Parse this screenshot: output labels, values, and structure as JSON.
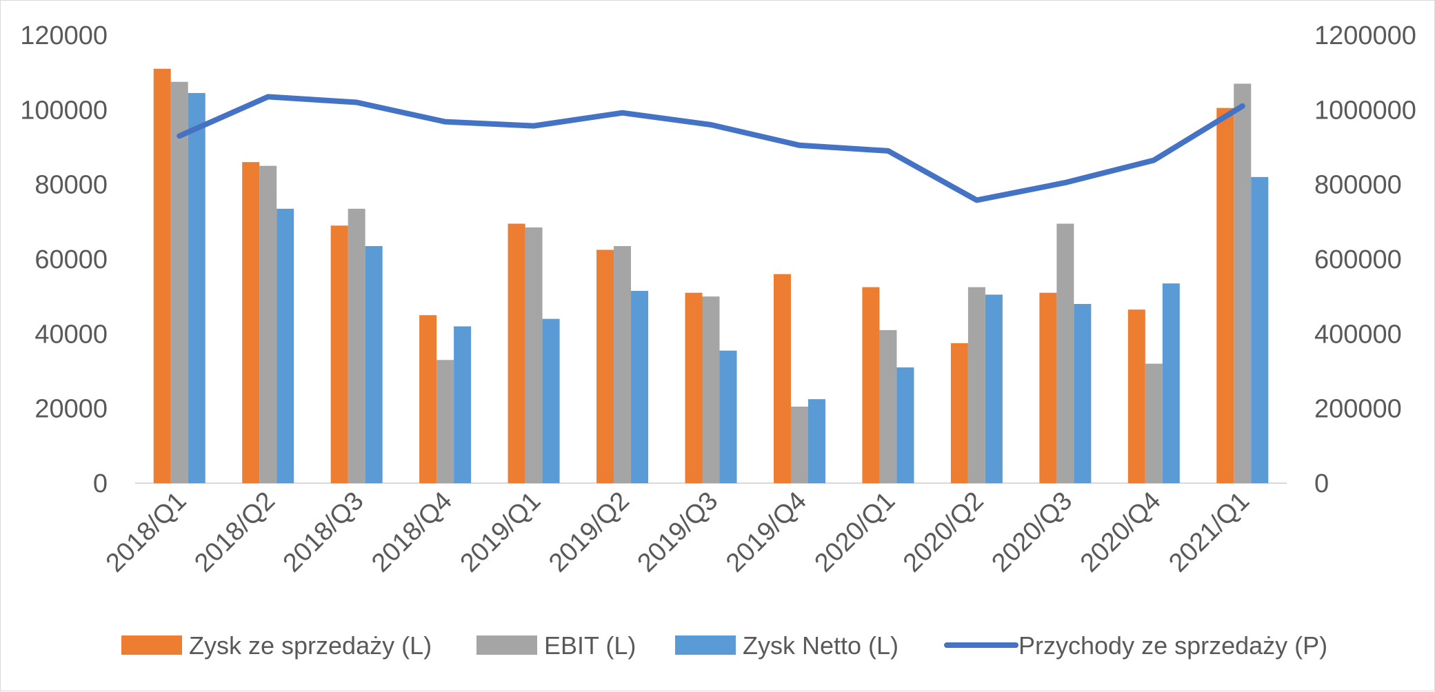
{
  "chart_data": {
    "type": "bar",
    "categories": [
      "2018/Q1",
      "2018/Q2",
      "2018/Q3",
      "2018/Q4",
      "2019/Q1",
      "2019/Q2",
      "2019/Q3",
      "2019/Q4",
      "2020/Q1",
      "2020/Q2",
      "2020/Q3",
      "2020/Q4",
      "2021/Q1"
    ],
    "series": [
      {
        "name": "Zysk ze sprzedaży (L)",
        "type": "bar",
        "axis": "left",
        "color": "#ED7D31",
        "values": [
          111000,
          86000,
          69000,
          45000,
          69500,
          62500,
          51000,
          56000,
          52500,
          37500,
          51000,
          46500,
          100500
        ]
      },
      {
        "name": "EBIT (L)",
        "type": "bar",
        "axis": "left",
        "color": "#A5A5A5",
        "values": [
          107500,
          85000,
          73500,
          33000,
          68500,
          63500,
          50000,
          20500,
          41000,
          52500,
          69500,
          32000,
          107000
        ]
      },
      {
        "name": "Zysk Netto (L)",
        "type": "bar",
        "axis": "left",
        "color": "#5B9BD5",
        "values": [
          104500,
          73500,
          63500,
          42000,
          44000,
          51500,
          35500,
          22500,
          31000,
          50500,
          48000,
          53500,
          82000
        ]
      },
      {
        "name": "Przychody ze sprzedaży (P)",
        "type": "line",
        "axis": "right",
        "color": "#4472C4",
        "values": [
          930000,
          1035000,
          1020000,
          968000,
          957000,
          992000,
          960000,
          905000,
          890000,
          758000,
          805000,
          865000,
          1010000
        ]
      }
    ],
    "left_axis": {
      "min": 0,
      "max": 120000,
      "ticks": [
        "0",
        "20000",
        "40000",
        "60000",
        "80000",
        "100000",
        "120000"
      ]
    },
    "right_axis": {
      "min": 0,
      "max": 1200000,
      "ticks": [
        "0",
        "200000",
        "400000",
        "600000",
        "800000",
        "1000000",
        "1200000"
      ]
    },
    "grid": false,
    "legend_position": "bottom"
  }
}
